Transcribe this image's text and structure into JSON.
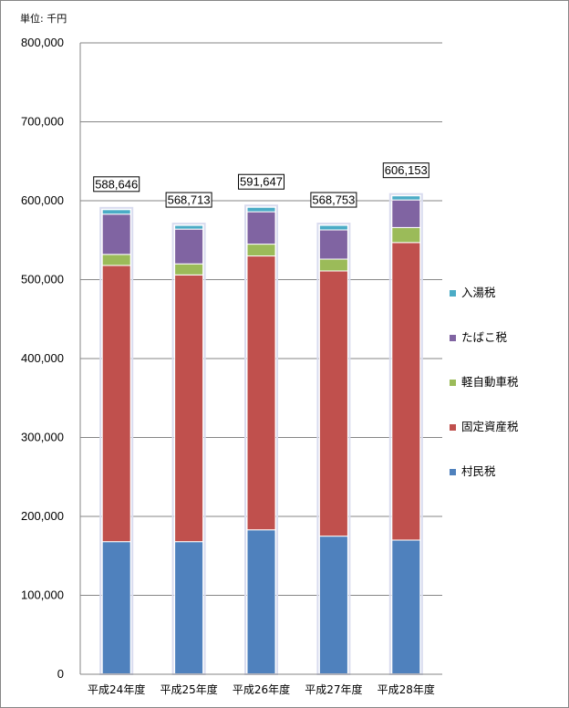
{
  "chart_data": {
    "type": "bar",
    "stacked": true,
    "unit_label": "単位: 千円",
    "categories": [
      "平成24年度",
      "平成25年度",
      "平成26年度",
      "平成27年度",
      "平成28年度"
    ],
    "series": [
      {
        "name": "村民税",
        "color": "#4F81BD",
        "values": [
          168000,
          168000,
          183000,
          175000,
          170000
        ]
      },
      {
        "name": "固定資産税",
        "color": "#C0504D",
        "values": [
          350000,
          338000,
          347000,
          336000,
          377000
        ]
      },
      {
        "name": "軽自動車税",
        "color": "#9BBB59",
        "values": [
          14000,
          14000,
          15000,
          15000,
          19000
        ]
      },
      {
        "name": "たばこ税",
        "color": "#8064A2",
        "values": [
          51000,
          44000,
          41000,
          37000,
          35000
        ]
      },
      {
        "name": "入湯税",
        "color": "#4BACC6",
        "values": [
          5646,
          4713,
          5647,
          5753,
          5153
        ]
      }
    ],
    "totals": [
      "588,646",
      "568,713",
      "591,647",
      "568,753",
      "606,153"
    ],
    "ylim": [
      0,
      800000
    ],
    "yticks": [
      "0",
      "100,000",
      "200,000",
      "300,000",
      "400,000",
      "500,000",
      "600,000",
      "700,000",
      "800,000"
    ],
    "legend_position": "right",
    "grid": true
  }
}
